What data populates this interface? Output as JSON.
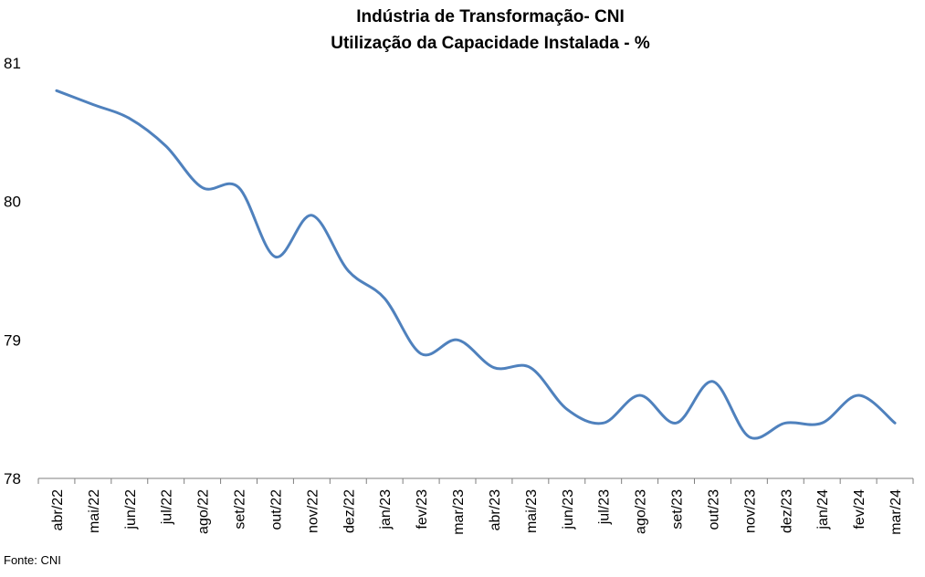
{
  "chart_data": {
    "type": "line",
    "title": "Indústria de Transformação- CNI",
    "subtitle": "Utilização da Capacidade Instalada - %",
    "categories": [
      "abr/22",
      "mai/22",
      "jun/22",
      "jul/22",
      "ago/22",
      "set/22",
      "out/22",
      "nov/22",
      "dez/22",
      "jan/23",
      "fev/23",
      "mar/23",
      "abr/23",
      "mai/23",
      "jun/23",
      "jul/23",
      "ago/23",
      "set/23",
      "out/23",
      "nov/23",
      "dez/23",
      "jan/24",
      "fev/24",
      "mar/24"
    ],
    "series": [
      {
        "values": [
          80.8,
          80.7,
          80.6,
          80.4,
          80.1,
          80.1,
          79.6,
          79.9,
          79.5,
          79.3,
          78.9,
          79.0,
          78.8,
          78.8,
          78.5,
          78.4,
          78.6,
          78.4,
          78.7,
          78.3,
          78.4,
          78.4,
          78.6,
          78.4
        ],
        "color": "#4f81bd"
      }
    ],
    "ylim": [
      78,
      81
    ],
    "yticks": [
      "78",
      "79",
      "80",
      "81"
    ],
    "grid": false,
    "legend": "none"
  },
  "source": "Fonte: CNI"
}
